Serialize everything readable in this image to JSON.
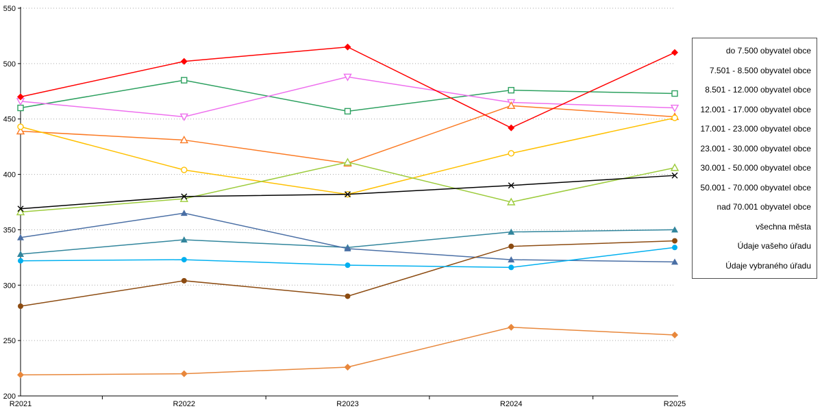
{
  "chart_data": {
    "type": "line",
    "title": "",
    "xlabel": "",
    "ylabel": "",
    "categories": [
      "R2021",
      "R2022",
      "R2023",
      "R2024",
      "R2025"
    ],
    "ylim": [
      200,
      550
    ],
    "ytick_step": 50,
    "grid": true,
    "gridline_style": "dotted",
    "legend_position": "right",
    "series": [
      {
        "name": "do 7.500 obyvatel obce",
        "color": "#FF0000",
        "marker": "diamond-filled",
        "values": [
          470,
          502,
          515,
          442,
          510
        ]
      },
      {
        "name": "7.501 - 8.500 obyvatel obce",
        "color": "#2CA05F",
        "marker": "square-open",
        "values": [
          460,
          485,
          457,
          476,
          473
        ]
      },
      {
        "name": "8.501 - 12.000 obyvatel obce",
        "color": "#EE6FEE",
        "marker": "triangle-down-open",
        "values": [
          466,
          452,
          488,
          465,
          460
        ]
      },
      {
        "name": "12.001 - 17.000 obyvatel obce",
        "color": "#FB7A23",
        "marker": "triangle-up-open",
        "values": [
          439,
          431,
          410,
          462,
          452
        ]
      },
      {
        "name": "17.001 - 23.000 obyvatel obce",
        "color": "#FFC000",
        "marker": "circle-open",
        "values": [
          443,
          404,
          382,
          419,
          451
        ]
      },
      {
        "name": "23.001 - 30.000 obyvatel obce",
        "color": "#9CCB3B",
        "marker": "triangle-up-open",
        "values": [
          366,
          378,
          411,
          375,
          406
        ]
      },
      {
        "name": "30.001 - 50.000 obyvatel obce",
        "color": "#31859C",
        "marker": "triangle-up-filled",
        "values": [
          328,
          341,
          334,
          348,
          350
        ]
      },
      {
        "name": "50.001 - 70.000 obyvatel obce",
        "color": "#4A6FA5",
        "marker": "triangle-up-filled",
        "values": [
          343,
          365,
          333,
          323,
          321
        ]
      },
      {
        "name": "nad 70.001 obyvatel obce",
        "color": "#8C4B11",
        "marker": "circle-filled",
        "values": [
          281,
          304,
          290,
          335,
          340
        ]
      },
      {
        "name": "všechna města",
        "color": "#000000",
        "marker": "x",
        "values": [
          369,
          380,
          382,
          390,
          399
        ]
      },
      {
        "name": "Údaje vašeho úřadu",
        "color": "#00B0F0",
        "marker": "circle-filled",
        "values": [
          322,
          323,
          318,
          316,
          334
        ]
      },
      {
        "name": "Údaje vybraného úřadu",
        "color": "#E8873B",
        "marker": "diamond-filled",
        "values": [
          219,
          220,
          226,
          262,
          255
        ]
      }
    ]
  },
  "axes": {
    "y_tick_labels": [
      "200",
      "250",
      "300",
      "350",
      "400",
      "450",
      "500",
      "550"
    ],
    "x_tick_labels": [
      "R2021",
      "R2022",
      "R2023",
      "R2024",
      "R2025"
    ]
  },
  "colors": {
    "gridline": "#a6a6a6",
    "axis": "#000000",
    "text": "#000000",
    "background": "#ffffff",
    "legend_border": "#4d4d4d"
  }
}
